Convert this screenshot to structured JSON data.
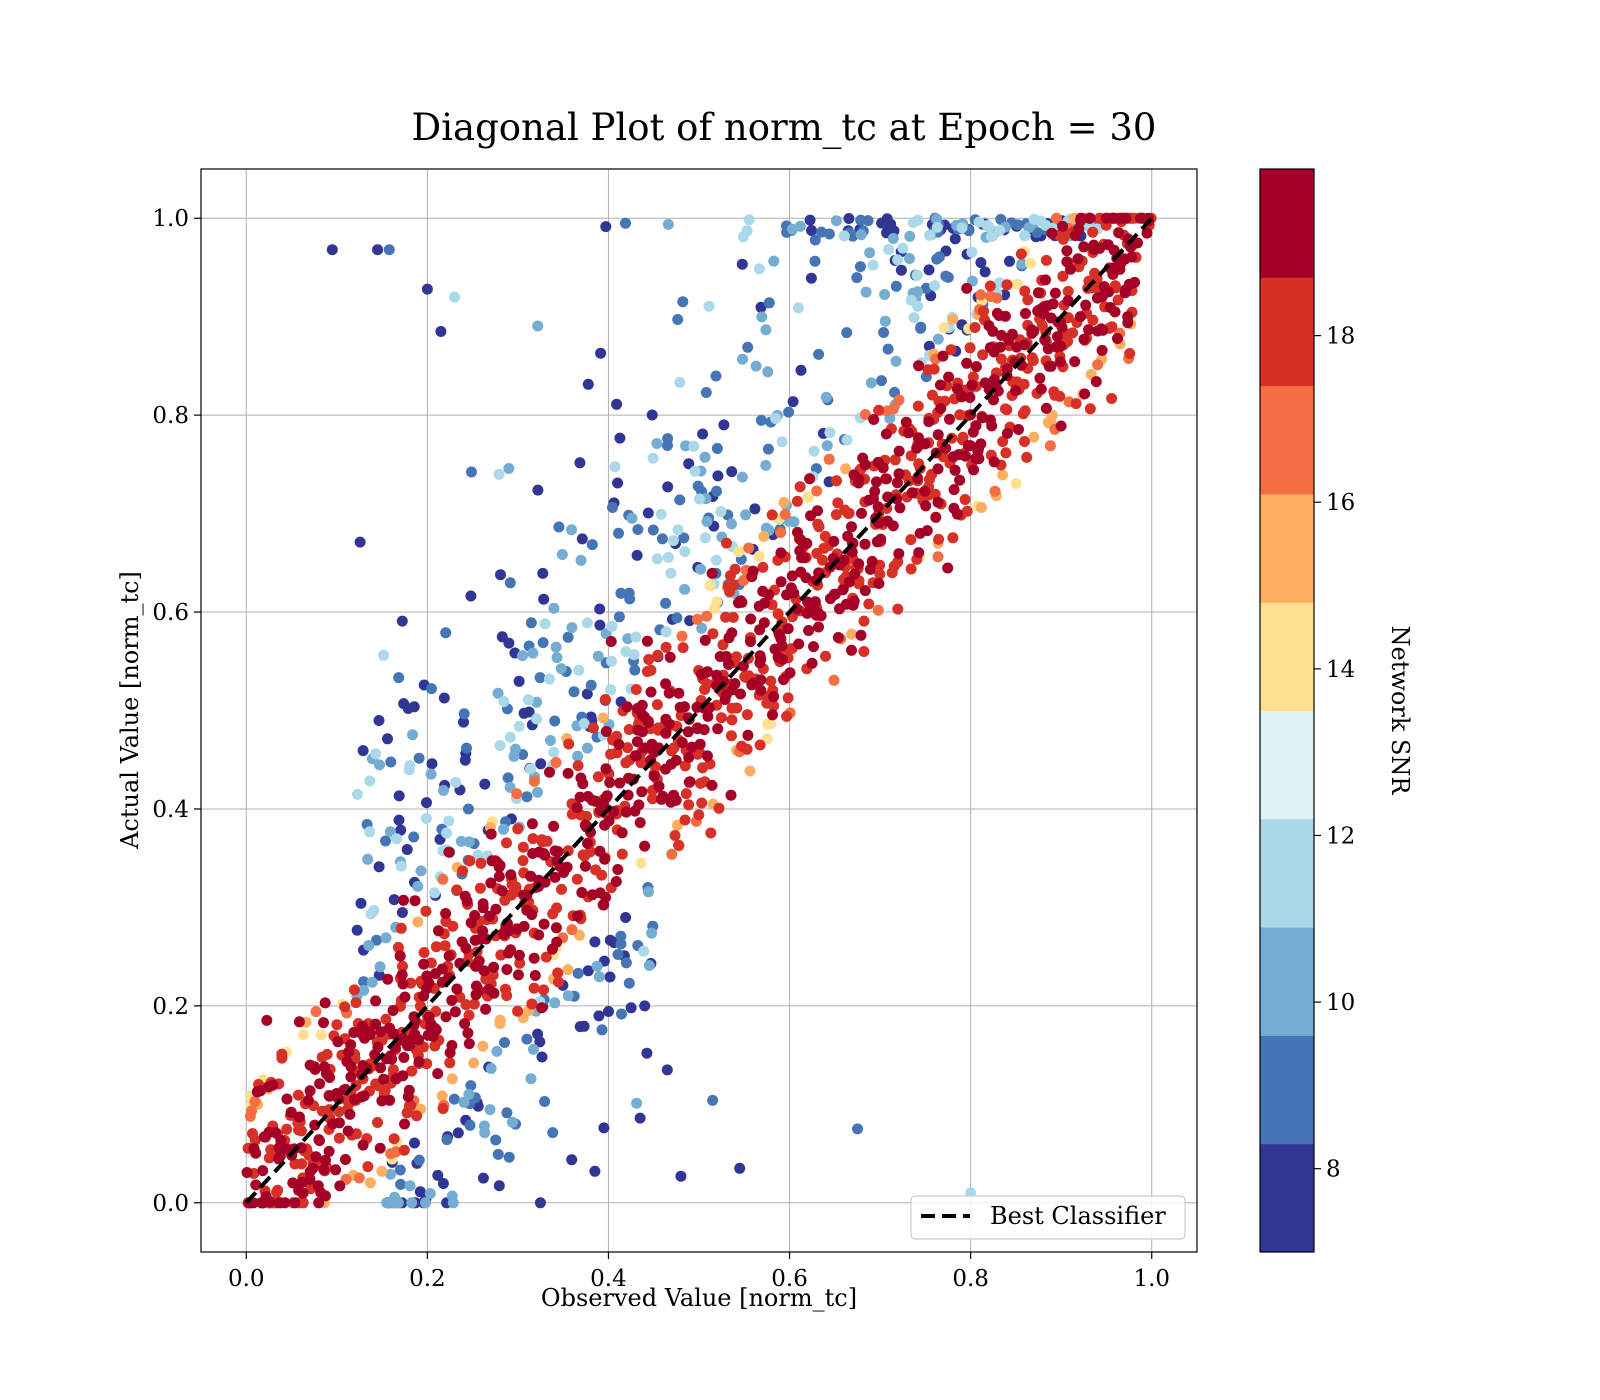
{
  "chart_data": {
    "type": "scatter",
    "title": "Diagonal Plot of norm_tc at Epoch = 30",
    "xlabel": "Observed Value [norm_tc]",
    "ylabel": "Actual Value [norm_tc]",
    "xlim": [
      -0.05,
      1.05
    ],
    "ylim": [
      -0.05,
      1.05
    ],
    "x_ticks": [
      "0.0",
      "0.2",
      "0.4",
      "0.6",
      "0.8",
      "1.0"
    ],
    "y_ticks": [
      "0.0",
      "0.2",
      "0.4",
      "0.6",
      "0.8",
      "1.0"
    ],
    "x_tick_values": [
      0.0,
      0.2,
      0.4,
      0.6,
      0.8,
      1.0
    ],
    "y_tick_values": [
      0.0,
      0.2,
      0.4,
      0.6,
      0.8,
      1.0
    ],
    "grid": true,
    "reference_line": {
      "label": "Best Classifier",
      "x": [
        0,
        1
      ],
      "y": [
        0,
        1
      ],
      "style": "dashed",
      "color": "#000000"
    },
    "legend": {
      "position": "bottom-right",
      "entries": [
        "Best Classifier"
      ]
    },
    "colorbar": {
      "label": "Network SNR",
      "range": [
        7,
        20
      ],
      "ticks": [
        "8",
        "10",
        "12",
        "14",
        "16",
        "18"
      ],
      "tick_values": [
        8,
        10,
        12,
        14,
        16,
        18
      ],
      "colors": [
        "#313695",
        "#4575b4",
        "#74add1",
        "#abd9e9",
        "#e0f3f8",
        "#fee090",
        "#fdae61",
        "#f46d43",
        "#d73027",
        "#a50026"
      ],
      "color_range": [
        7,
        20
      ]
    },
    "scatter_summary": {
      "description_values": "Dense band of high-SNR (red, ~18-20) points along the diagonal y=x; low-SNR (blue, ~7-11) points scattered mostly above the diagonal at larger actual values; sparse outliers below the diagonal.",
      "approx_point_count": 1800
    }
  }
}
